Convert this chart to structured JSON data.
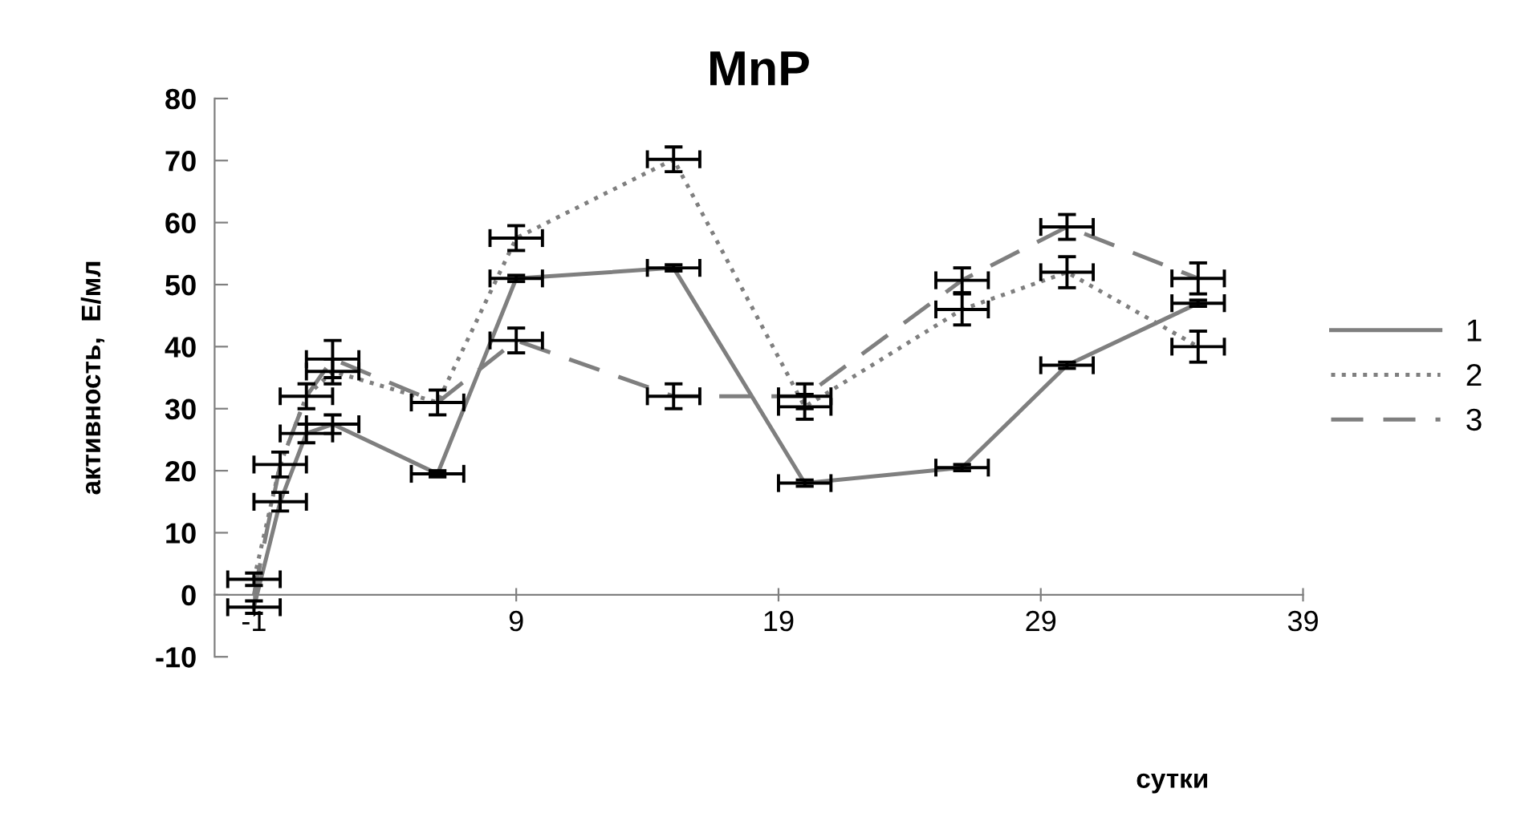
{
  "chart_data": {
    "type": "line",
    "title": "MnP",
    "xlabel": "сутки",
    "ylabel": "активность,  Е/мл",
    "xlim": [
      -2.5,
      39
    ],
    "xticks": [
      -1,
      9,
      19,
      29,
      39
    ],
    "ylim": [
      -10,
      80
    ],
    "yticks": [
      -10,
      0,
      10,
      20,
      30,
      40,
      50,
      60,
      70,
      80
    ],
    "x": [
      -1,
      0,
      1,
      2,
      6,
      9,
      15,
      20,
      26,
      30,
      35
    ],
    "series": [
      {
        "name": "1",
        "color": "#7f7f7f",
        "line_style": "solid",
        "values": [
          -2,
          15,
          26,
          27.5,
          19.5,
          51,
          52.7,
          18,
          20.5,
          37,
          47
        ],
        "errors": [
          1,
          1.5,
          1.5,
          1.5,
          0.5,
          0.5,
          0.5,
          0.5,
          0.5,
          0.5,
          0.5
        ],
        "xerrors": [
          1,
          1,
          1,
          1,
          1,
          1,
          1,
          1,
          1,
          1,
          1
        ]
      },
      {
        "name": "2",
        "color": "#7f7f7f",
        "line_style": "dotted",
        "values": [
          2.5,
          21,
          32,
          36,
          31,
          57.5,
          70.2,
          30.3,
          46,
          52,
          40
        ],
        "errors": [
          1,
          2,
          2,
          2,
          2,
          2,
          2,
          2,
          2.5,
          2.5,
          2.5
        ],
        "xerrors": [
          1,
          1,
          1,
          1,
          1,
          1,
          1,
          1,
          1,
          1,
          1
        ]
      },
      {
        "name": "3",
        "color": "#7f7f7f",
        "line_style": "dashed",
        "values": [
          0,
          21,
          32,
          38,
          31,
          41,
          32,
          32,
          50.7,
          59.3,
          51
        ],
        "errors": [
          null,
          null,
          null,
          3,
          null,
          2,
          2,
          2,
          2,
          2,
          2.5
        ],
        "xerrors": [
          null,
          null,
          null,
          1,
          null,
          1,
          1,
          1,
          1,
          1,
          1
        ]
      }
    ],
    "marker": "none",
    "grid": false,
    "legend": "right"
  }
}
